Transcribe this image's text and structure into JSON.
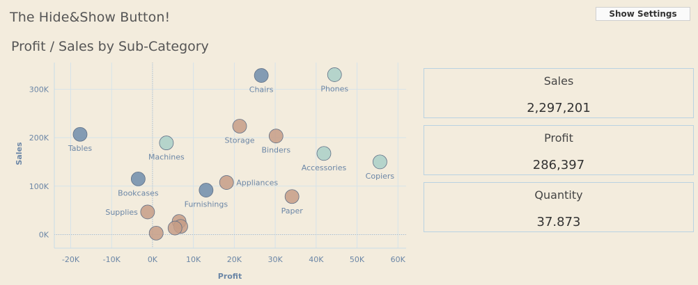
{
  "header": {
    "title": "The Hide&Show Button!",
    "settings_button_label": "Show Settings"
  },
  "chart_title": "Profit / Sales by Sub-Category",
  "kpis": [
    {
      "label": "Sales",
      "value": "2,297,201"
    },
    {
      "label": "Profit",
      "value": "286,397"
    },
    {
      "label": "Quantity",
      "value": "37.873"
    }
  ],
  "colors": {
    "background": "#f3ecdd",
    "blue": "#6f8dac",
    "teal": "#a9d0c8",
    "orange": "#c59e87",
    "grid": "#d6e3ea",
    "axis_text": "#6b86a6",
    "kpi_border": "#b9d2e2"
  },
  "chart_data": {
    "type": "scatter",
    "title": "Profit / Sales by Sub-Category",
    "xlabel": "Profit",
    "ylabel": "Sales",
    "xlim": [
      -24000,
      62000
    ],
    "ylim": [
      -28000,
      355000
    ],
    "x_ticks": [
      -20000,
      -10000,
      0,
      10000,
      20000,
      30000,
      40000,
      50000,
      60000
    ],
    "x_tick_labels": [
      "-20K",
      "-10K",
      "0K",
      "10K",
      "20K",
      "30K",
      "40K",
      "50K",
      "60K"
    ],
    "y_ticks": [
      0,
      100000,
      200000,
      300000
    ],
    "y_tick_labels": [
      "0K",
      "100K",
      "200K",
      "300K"
    ],
    "grid": true,
    "points": [
      {
        "label": "Tables",
        "x": -17700,
        "y": 206900,
        "color": "blue",
        "label_pos": "below"
      },
      {
        "label": "Chairs",
        "x": 26600,
        "y": 328400,
        "color": "blue",
        "label_pos": "below"
      },
      {
        "label": "Phones",
        "x": 44500,
        "y": 330000,
        "color": "teal",
        "label_pos": "below"
      },
      {
        "label": "Machines",
        "x": 3400,
        "y": 189200,
        "color": "teal",
        "label_pos": "below"
      },
      {
        "label": "Storage",
        "x": 21300,
        "y": 223800,
        "color": "orange",
        "label_pos": "below"
      },
      {
        "label": "Binders",
        "x": 30200,
        "y": 203400,
        "color": "orange",
        "label_pos": "below"
      },
      {
        "label": "Accessories",
        "x": 41900,
        "y": 167400,
        "color": "teal",
        "label_pos": "below"
      },
      {
        "label": "Copiers",
        "x": 55600,
        "y": 150000,
        "color": "teal",
        "label_pos": "below"
      },
      {
        "label": "Bookcases",
        "x": -3500,
        "y": 114900,
        "color": "blue",
        "label_pos": "below"
      },
      {
        "label": "Appliances",
        "x": 18100,
        "y": 107500,
        "color": "orange",
        "label_pos": "right"
      },
      {
        "label": "Furnishings",
        "x": 13100,
        "y": 91700,
        "color": "blue",
        "label_pos": "below"
      },
      {
        "label": "Paper",
        "x": 34100,
        "y": 78500,
        "color": "orange",
        "label_pos": "below"
      },
      {
        "label": "Supplies",
        "x": -1200,
        "y": 46700,
        "color": "orange",
        "label_pos": "left"
      },
      {
        "label": "",
        "x": 6500,
        "y": 27100,
        "color": "orange",
        "label_pos": "none"
      },
      {
        "label": "",
        "x": 6900,
        "y": 16800,
        "color": "orange",
        "label_pos": "none"
      },
      {
        "label": "",
        "x": 5500,
        "y": 13500,
        "color": "orange",
        "label_pos": "none"
      },
      {
        "label": "",
        "x": 900,
        "y": 3000,
        "color": "orange",
        "label_pos": "none"
      }
    ]
  }
}
